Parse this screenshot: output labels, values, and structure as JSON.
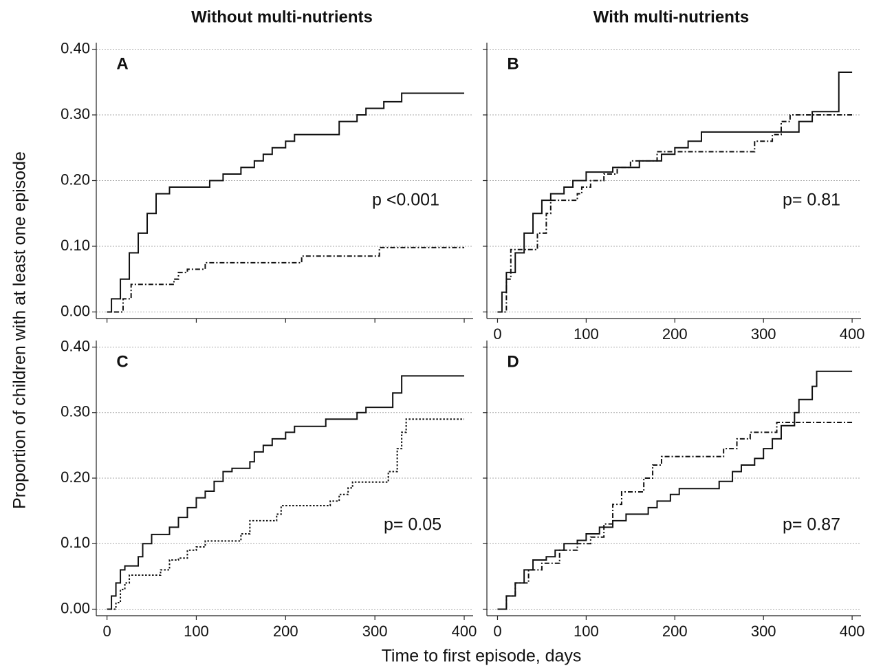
{
  "column_titles": [
    "Without multi-nutrients",
    "With multi-nutrients"
  ],
  "y_label": "Proportion of children with at least one episode",
  "x_label": "Time to first episode, days",
  "chart_data": [
    {
      "type": "step",
      "panel_label": "A",
      "annotation": "p <0.001",
      "xlim": [
        -12,
        410
      ],
      "ylim": [
        -0.01,
        0.41
      ],
      "xticks": [
        0,
        100,
        200,
        300,
        400
      ],
      "x_tick_labels": false,
      "yticks": [
        {
          "value": 0,
          "label": "0.00"
        },
        {
          "value": 0.1,
          "label": "0.10"
        },
        {
          "value": 0.2,
          "label": "0.20"
        },
        {
          "value": 0.3,
          "label": "0.30"
        },
        {
          "value": 0.4,
          "label": "0.40"
        }
      ],
      "y_tick_labels": true,
      "grid": true,
      "series": [
        {
          "color": "#111111",
          "dash": "solid",
          "x": [
            0,
            5,
            15,
            25,
            35,
            45,
            55,
            70,
            115,
            130,
            150,
            165,
            175,
            185,
            200,
            210,
            260,
            280,
            290,
            310,
            330,
            400
          ],
          "values": [
            0,
            0.02,
            0.05,
            0.09,
            0.12,
            0.15,
            0.18,
            0.19,
            0.2,
            0.21,
            0.22,
            0.23,
            0.24,
            0.25,
            0.26,
            0.27,
            0.29,
            0.3,
            0.31,
            0.32,
            0.333,
            0.333
          ]
        },
        {
          "color": "#111111",
          "dash": "dashdot",
          "x": [
            8,
            18,
            27,
            75,
            80,
            90,
            110,
            218,
            305,
            400
          ],
          "values": [
            0,
            0.02,
            0.042,
            0.05,
            0.06,
            0.065,
            0.075,
            0.085,
            0.098,
            0.098
          ]
        }
      ]
    },
    {
      "type": "step",
      "panel_label": "B",
      "annotation": "p= 0.81",
      "xlim": [
        -12,
        410
      ],
      "ylim": [
        -0.01,
        0.41
      ],
      "xticks": [
        0,
        100,
        200,
        300,
        400
      ],
      "x_tick_labels": true,
      "yticks": [
        0,
        0.1,
        0.2,
        0.3,
        0.4
      ],
      "y_tick_labels": false,
      "grid": true,
      "series": [
        {
          "color": "#111111",
          "dash": "solid",
          "x": [
            0,
            5,
            10,
            20,
            30,
            40,
            50,
            60,
            75,
            85,
            100,
            130,
            160,
            185,
            200,
            215,
            230,
            340,
            355,
            385,
            400
          ],
          "values": [
            0,
            0.03,
            0.06,
            0.09,
            0.12,
            0.15,
            0.17,
            0.18,
            0.19,
            0.2,
            0.213,
            0.22,
            0.23,
            0.24,
            0.25,
            0.26,
            0.274,
            0.29,
            0.305,
            0.365,
            0.365
          ]
        },
        {
          "color": "#111111",
          "dash": "dashdot",
          "x": [
            0,
            10,
            15,
            45,
            55,
            60,
            90,
            95,
            105,
            120,
            135,
            150,
            180,
            290,
            310,
            320,
            330,
            400
          ],
          "values": [
            0,
            0.05,
            0.095,
            0.12,
            0.15,
            0.17,
            0.18,
            0.19,
            0.2,
            0.21,
            0.22,
            0.23,
            0.244,
            0.26,
            0.27,
            0.29,
            0.3,
            0.3
          ]
        }
      ]
    },
    {
      "type": "step",
      "panel_label": "C",
      "annotation": "p= 0.05",
      "xlim": [
        -12,
        410
      ],
      "ylim": [
        -0.01,
        0.41
      ],
      "xticks": [
        0,
        100,
        200,
        300,
        400
      ],
      "x_tick_labels": true,
      "yticks": [
        {
          "value": 0,
          "label": "0.00"
        },
        {
          "value": 0.1,
          "label": "0.10"
        },
        {
          "value": 0.2,
          "label": "0.20"
        },
        {
          "value": 0.3,
          "label": "0.30"
        },
        {
          "value": 0.4,
          "label": "0.40"
        }
      ],
      "y_tick_labels": true,
      "grid": true,
      "series": [
        {
          "color": "#111111",
          "dash": "solid",
          "x": [
            0,
            5,
            10,
            15,
            20,
            35,
            40,
            50,
            70,
            80,
            90,
            100,
            110,
            120,
            130,
            140,
            160,
            165,
            175,
            185,
            200,
            210,
            245,
            280,
            290,
            320,
            330,
            400
          ],
          "values": [
            0,
            0.02,
            0.04,
            0.06,
            0.066,
            0.08,
            0.1,
            0.114,
            0.125,
            0.14,
            0.155,
            0.17,
            0.18,
            0.195,
            0.21,
            0.215,
            0.225,
            0.24,
            0.25,
            0.26,
            0.27,
            0.279,
            0.29,
            0.3,
            0.308,
            0.33,
            0.356,
            0.356
          ]
        },
        {
          "color": "#111111",
          "dash": "dotted",
          "x": [
            0,
            10,
            15,
            20,
            25,
            60,
            70,
            80,
            90,
            100,
            110,
            150,
            160,
            190,
            195,
            250,
            260,
            270,
            275,
            315,
            325,
            330,
            335,
            400
          ],
          "values": [
            0,
            0.01,
            0.03,
            0.04,
            0.052,
            0.06,
            0.075,
            0.078,
            0.09,
            0.095,
            0.104,
            0.115,
            0.135,
            0.145,
            0.158,
            0.165,
            0.175,
            0.185,
            0.194,
            0.21,
            0.245,
            0.27,
            0.29,
            0.29
          ]
        }
      ]
    },
    {
      "type": "step",
      "panel_label": "D",
      "annotation": "p= 0.87",
      "xlim": [
        -12,
        410
      ],
      "ylim": [
        -0.01,
        0.41
      ],
      "xticks": [
        0,
        100,
        200,
        300,
        400
      ],
      "x_tick_labels": true,
      "yticks": [
        0,
        0.1,
        0.2,
        0.3,
        0.4
      ],
      "y_tick_labels": false,
      "grid": true,
      "series": [
        {
          "color": "#111111",
          "dash": "solid",
          "x": [
            0,
            10,
            20,
            30,
            40,
            55,
            65,
            75,
            90,
            100,
            115,
            130,
            145,
            170,
            180,
            195,
            205,
            250,
            265,
            275,
            290,
            300,
            310,
            320,
            335,
            340,
            355,
            360,
            400
          ],
          "values": [
            0,
            0.02,
            0.04,
            0.06,
            0.075,
            0.08,
            0.09,
            0.1,
            0.105,
            0.115,
            0.125,
            0.135,
            0.145,
            0.155,
            0.165,
            0.175,
            0.184,
            0.195,
            0.21,
            0.22,
            0.23,
            0.245,
            0.26,
            0.28,
            0.3,
            0.32,
            0.34,
            0.363,
            0.363
          ]
        },
        {
          "color": "#111111",
          "dash": "dashdot",
          "x": [
            0,
            10,
            20,
            35,
            50,
            70,
            90,
            105,
            120,
            130,
            140,
            165,
            175,
            185,
            255,
            270,
            285,
            315,
            400
          ],
          "values": [
            0,
            0.02,
            0.04,
            0.06,
            0.07,
            0.09,
            0.1,
            0.11,
            0.13,
            0.16,
            0.179,
            0.2,
            0.22,
            0.233,
            0.245,
            0.26,
            0.27,
            0.285,
            0.285
          ]
        }
      ]
    }
  ]
}
